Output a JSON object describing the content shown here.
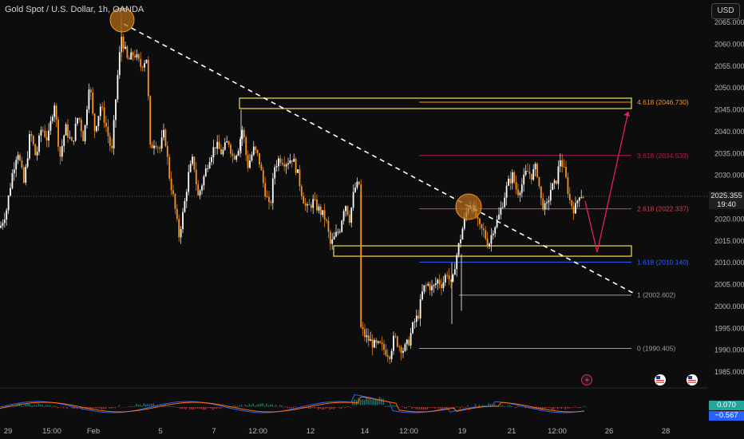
{
  "header": {
    "symbol_title": "Gold Spot / U.S. Dollar, 1h, OANDA"
  },
  "toolbar": {
    "currency_label": "USD"
  },
  "price_axis": {
    "ticks": [
      "2065.000",
      "2060.000",
      "2055.000",
      "2050.000",
      "2045.000",
      "2040.000",
      "2035.000",
      "2030.000",
      "2025.000",
      "2020.000",
      "2015.000",
      "2010.000",
      "2005.000",
      "2000.000",
      "1995.000",
      "1990.000",
      "1985.000"
    ],
    "current_price": "2025.355",
    "countdown": "19:40"
  },
  "time_axis": {
    "labels": [
      "29",
      "15:00",
      "Feb",
      "5",
      "7",
      "12:00",
      "12",
      "14",
      "12:00",
      "19",
      "21",
      "12:00",
      "26",
      "28"
    ]
  },
  "fib_levels": [
    {
      "ratio": "4.618",
      "price": "2046.730",
      "label": "4.618 (2046.730)",
      "color": "#f7931e"
    },
    {
      "ratio": "3.618",
      "price": "2034.533",
      "label": "3.618 (2034.533)",
      "color": "#c2185b"
    },
    {
      "ratio": "2.618",
      "price": "2022.337",
      "label": "2.618 (2022.337)",
      "color": "#e53950"
    },
    {
      "ratio": "1.618",
      "price": "2010.140",
      "label": "1.618 (2010.140)",
      "color": "#2962ff"
    },
    {
      "ratio": "1",
      "price": "2002.602",
      "label": "1 (2002.602)",
      "color": "#9e9e9e"
    },
    {
      "ratio": "0",
      "price": "1990.405",
      "label": "0 (1990.405)",
      "color": "#9e9e9e"
    }
  ],
  "indicator": {
    "value_top": "0.070",
    "value_bottom": "−0.567",
    "color_top": "#26a69a",
    "color_bottom": "#2962ff"
  },
  "colors": {
    "candle_up": "#ffffff",
    "candle_down": "#f7931e",
    "zone_border": "#f5e04a",
    "trend_line": "#ffffff",
    "projection": "#e91e63",
    "circle_fill": "#b06a1a"
  },
  "icons": [
    "lightning-event-icon",
    "us-flag-event-icon"
  ]
}
